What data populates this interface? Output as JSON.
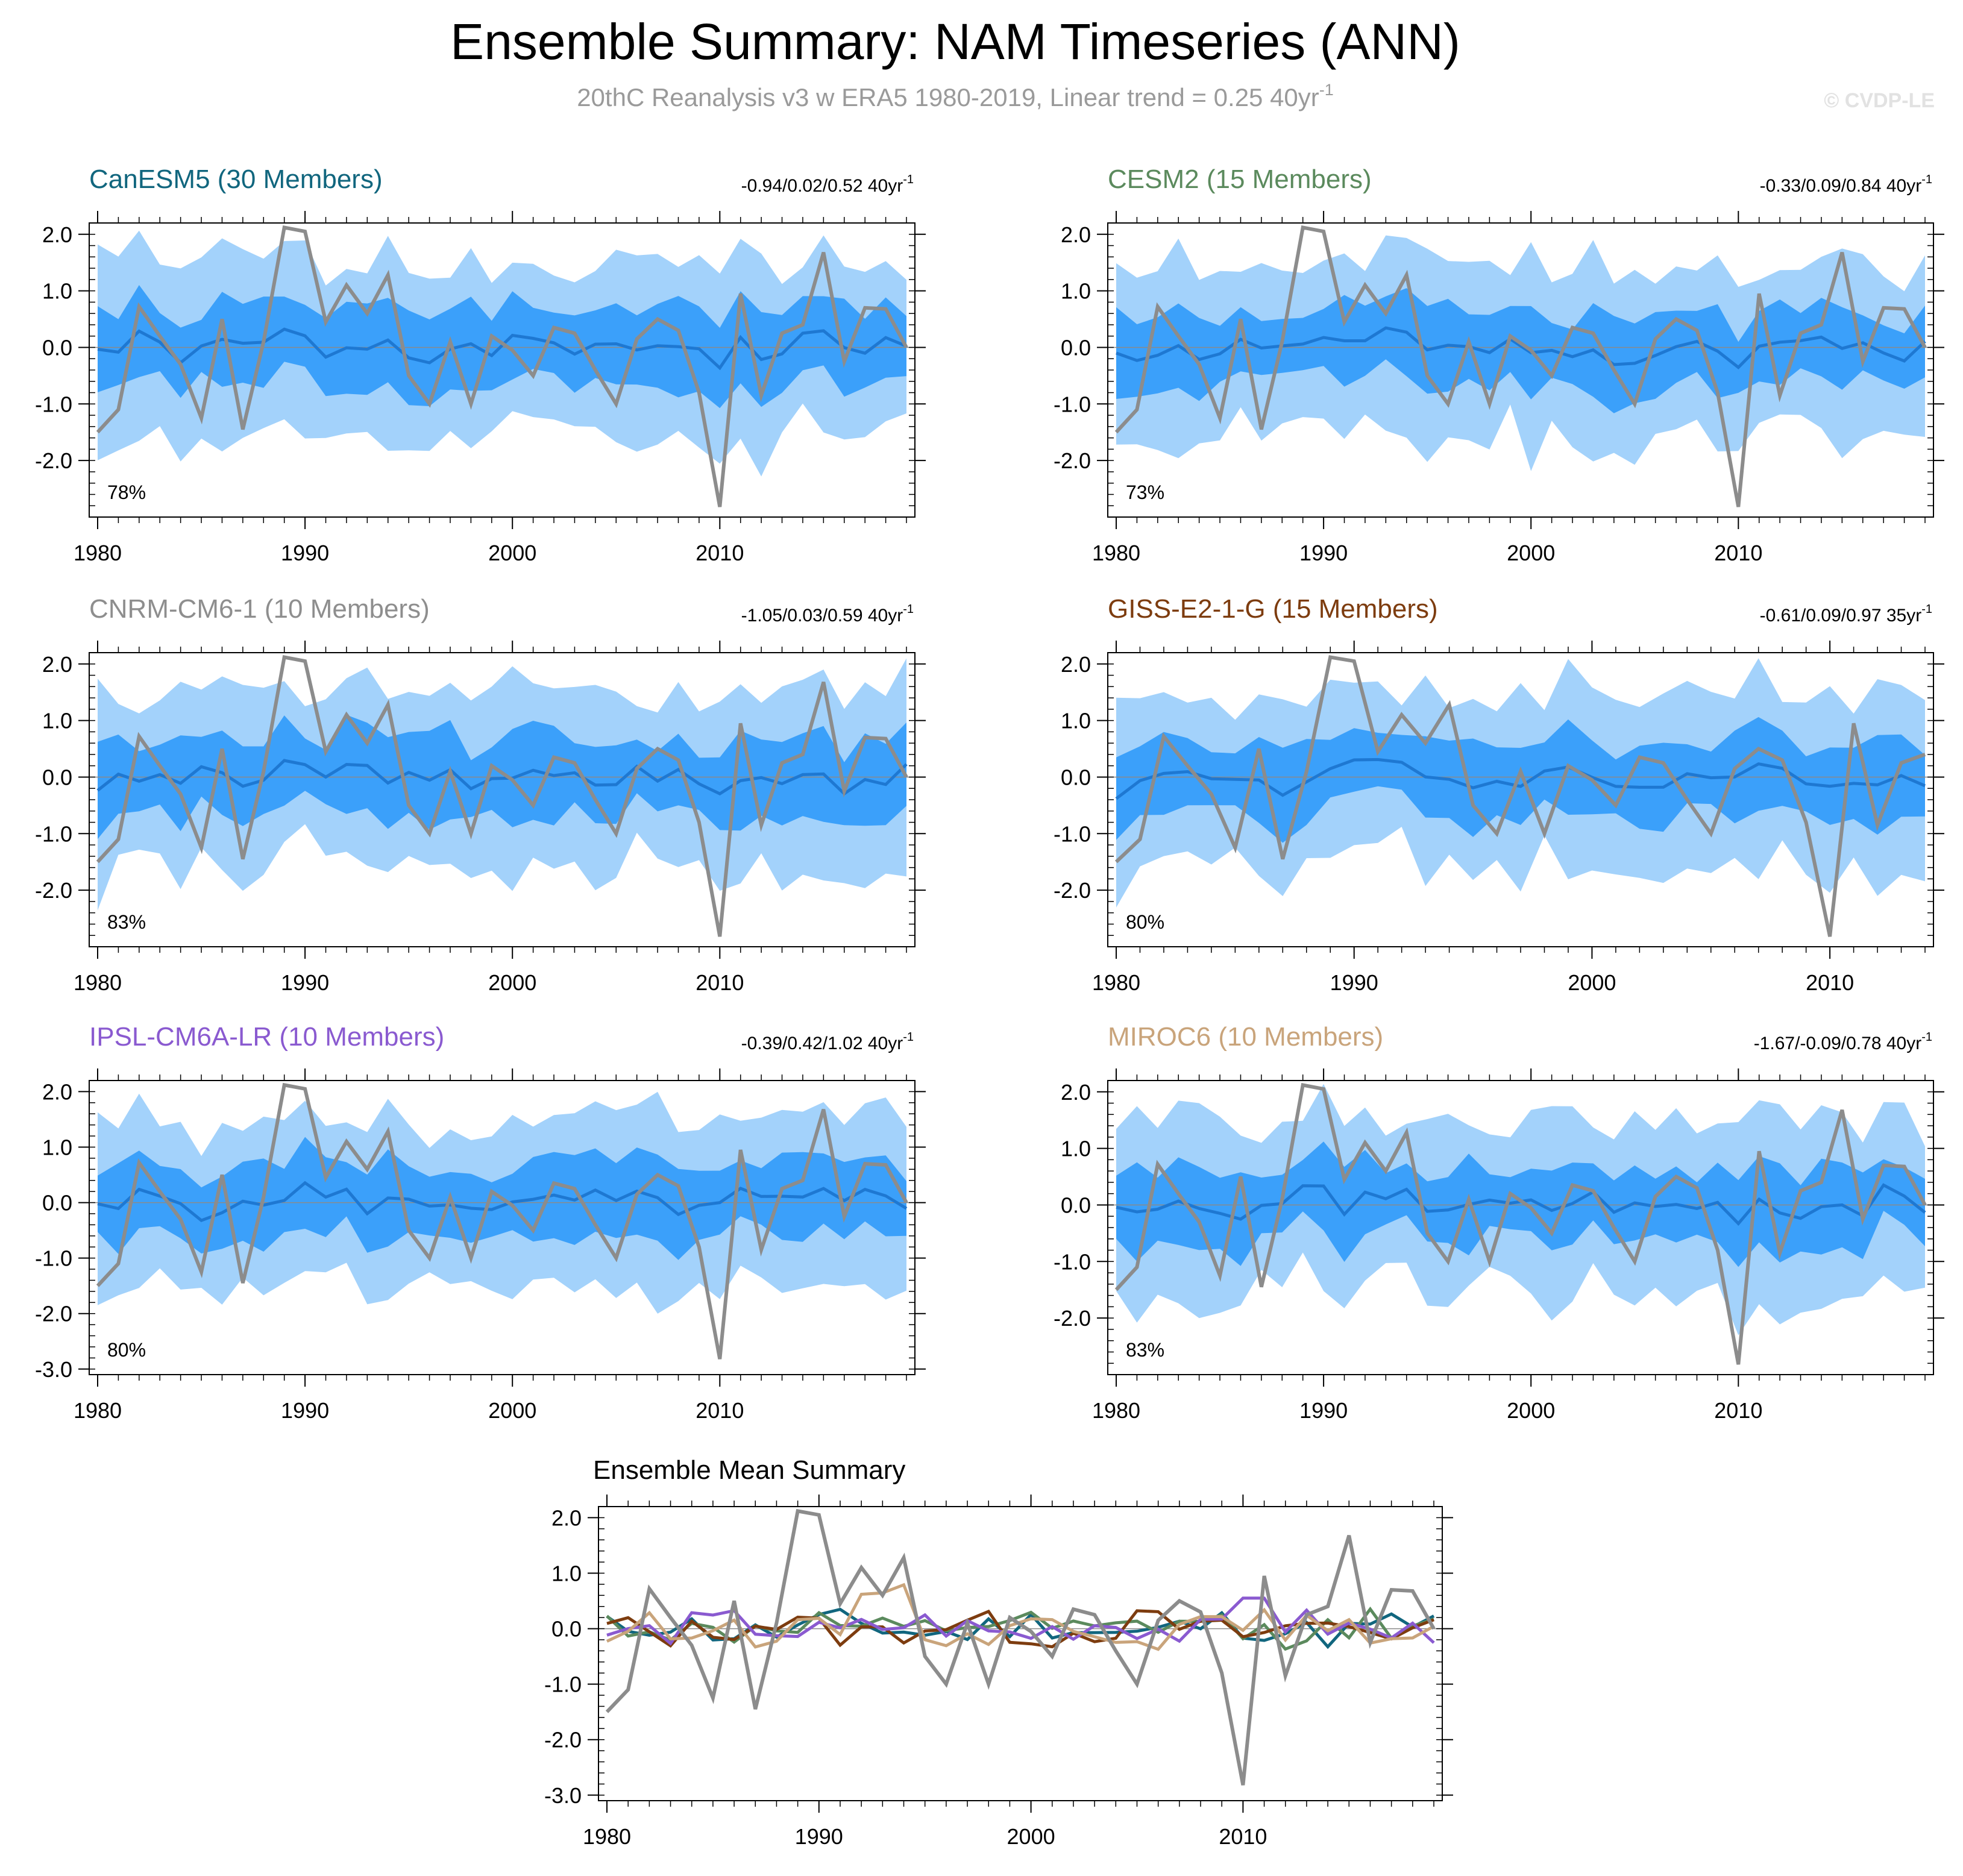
{
  "header": {
    "title": "Ensemble Summary: NAM Timeseries (ANN)",
    "subtitle": "20thC Reanalysis v3 w ERA5 1980-2019, Linear trend = 0.25 40yr",
    "subtitle_exp": "-1",
    "watermark": "© CVDP-LE"
  },
  "colors": {
    "band_outer": "#a3d2fb",
    "band_inner": "#3ba0fa",
    "ens_mean": "#1e78d2",
    "observed": "#8c8c8c",
    "zero_line": "#8a8a8a"
  },
  "chart_data": [
    {
      "type": "area",
      "panel": "panel_0",
      "title": "CanESM5 (30 Members)",
      "title_color": "#11667e",
      "trend_text": "-0.94/0.02/0.52 40yr",
      "trend_exp": "-1",
      "pct_label": "78%",
      "x_start": 1980,
      "x_end": 2019,
      "ylim": [
        -3.0,
        2.2
      ],
      "yticks": [
        "2.0",
        "1.0",
        "0.0",
        "-1.0",
        "-2.0"
      ],
      "xticks": [
        "1980",
        "1990",
        "2000",
        "2010"
      ],
      "seed": 1
    },
    {
      "type": "area",
      "panel": "panel_1",
      "title": "CESM2 (15 Members)",
      "title_color": "#5b8a5d",
      "trend_text": "-0.33/0.09/0.84 40yr",
      "trend_exp": "-1",
      "pct_label": "73%",
      "x_start": 1980,
      "x_end": 2019,
      "ylim": [
        -3.0,
        2.2
      ],
      "yticks": [
        "2.0",
        "1.0",
        "0.0",
        "-1.0",
        "-2.0"
      ],
      "xticks": [
        "1980",
        "1990",
        "2000",
        "2010"
      ],
      "seed": 2
    },
    {
      "type": "area",
      "panel": "panel_2",
      "title": "CNRM-CM6-1 (10 Members)",
      "title_color": "#8e8e8e",
      "trend_text": "-1.05/0.03/0.59 40yr",
      "trend_exp": "-1",
      "pct_label": "83%",
      "x_start": 1980,
      "x_end": 2019,
      "ylim": [
        -3.0,
        2.2
      ],
      "yticks": [
        "2.0",
        "1.0",
        "0.0",
        "-1.0",
        "-2.0"
      ],
      "xticks": [
        "1980",
        "1990",
        "2000",
        "2010"
      ],
      "seed": 3
    },
    {
      "type": "area",
      "panel": "panel_3",
      "title": "GISS-E2-1-G (15 Members)",
      "title_color": "#7d3c0f",
      "trend_text": "-0.61/0.09/0.97 35yr",
      "trend_exp": "-1",
      "pct_label": "80%",
      "x_start": 1980,
      "x_end": 2014,
      "ylim": [
        -3.0,
        2.2
      ],
      "yticks": [
        "2.0",
        "1.0",
        "0.0",
        "-1.0",
        "-2.0"
      ],
      "xticks": [
        "1980",
        "1990",
        "2000",
        "2010"
      ],
      "seed": 4
    },
    {
      "type": "area",
      "panel": "panel_4",
      "title": "IPSL-CM6A-LR (10 Members)",
      "title_color": "#8a5ad0",
      "trend_text": "-0.39/0.42/1.02 40yr",
      "trend_exp": "-1",
      "pct_label": "80%",
      "x_start": 1980,
      "x_end": 2019,
      "ylim": [
        -3.1,
        2.2
      ],
      "yticks": [
        "2.0",
        "1.0",
        "0.0",
        "-1.0",
        "-2.0",
        "-3.0"
      ],
      "xticks": [
        "1980",
        "1990",
        "2000",
        "2010"
      ],
      "seed": 5
    },
    {
      "type": "area",
      "panel": "panel_5",
      "title": "MIROC6 (10 Members)",
      "title_color": "#c9a47b",
      "trend_text": "-1.67/-0.09/0.78 40yr",
      "trend_exp": "-1",
      "pct_label": "83%",
      "x_start": 1980,
      "x_end": 2019,
      "ylim": [
        -3.0,
        2.2
      ],
      "yticks": [
        "2.0",
        "1.0",
        "0.0",
        "-1.0",
        "-2.0"
      ],
      "xticks": [
        "1980",
        "1990",
        "2000",
        "2010"
      ],
      "seed": 6
    },
    {
      "type": "line",
      "panel": "summary",
      "title": "Ensemble Mean Summary",
      "x_start": 1980,
      "x_end": 2019,
      "ylim": [
        -3.1,
        2.2
      ],
      "yticks": [
        "2.0",
        "1.0",
        "0.0",
        "-1.0",
        "-2.0",
        "-3.0"
      ],
      "xticks": [
        "1980",
        "1990",
        "2000",
        "2010"
      ],
      "series": [
        {
          "name": "CanESM5",
          "color": "#11667e"
        },
        {
          "name": "CESM2",
          "color": "#5b8a5d"
        },
        {
          "name": "GISS-E2-1-G",
          "color": "#7d3c0f"
        },
        {
          "name": "IPSL-CM6A-LR",
          "color": "#8a5ad0"
        },
        {
          "name": "MIROC6",
          "color": "#c9a47b"
        }
      ]
    }
  ],
  "observed": {
    "name": "20thC Reanalysis v3 w ERA5",
    "x": [
      1980,
      1981,
      1982,
      1983,
      1984,
      1985,
      1986,
      1987,
      1988,
      1989,
      1990,
      1991,
      1992,
      1993,
      1994,
      1995,
      1996,
      1997,
      1998,
      1999,
      2000,
      2001,
      2002,
      2003,
      2004,
      2005,
      2006,
      2007,
      2008,
      2009,
      2010,
      2011,
      2012,
      2013,
      2014,
      2015,
      2016,
      2017,
      2018,
      2019
    ],
    "values": [
      -1.5,
      -1.1,
      0.72,
      0.2,
      -0.3,
      -1.25,
      0.5,
      -1.45,
      0.1,
      2.12,
      2.05,
      0.45,
      1.1,
      0.6,
      1.28,
      -0.5,
      -1.0,
      0.1,
      -1.0,
      0.2,
      -0.05,
      -0.5,
      0.35,
      0.25,
      -0.4,
      -1.0,
      0.15,
      0.5,
      0.3,
      -0.8,
      -2.82,
      0.95,
      -0.85,
      0.25,
      0.4,
      1.68,
      -0.25,
      0.7,
      0.68,
      0.0
    ]
  }
}
